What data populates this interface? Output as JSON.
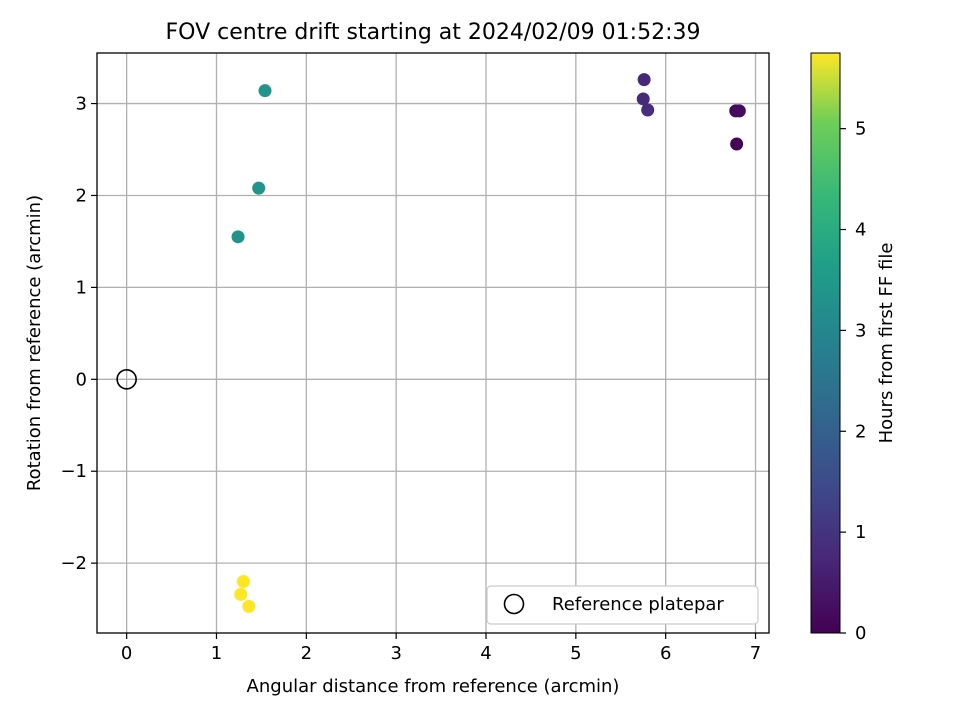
{
  "chart_data": {
    "type": "scatter",
    "title": "FOV centre drift starting at 2024/02/09 01:52:39",
    "xlabel": "Angular distance from reference (arcmin)",
    "ylabel": "Rotation from reference (arcmin)",
    "xlim": [
      -0.33,
      7.15
    ],
    "ylim": [
      -2.76,
      3.55
    ],
    "xticks": [
      0,
      1,
      2,
      3,
      4,
      5,
      6,
      7
    ],
    "yticks": [
      -2,
      -1,
      0,
      1,
      2,
      3
    ],
    "grid": true,
    "colorbar": {
      "label": "Hours from first FF file",
      "colormap": "viridis",
      "range": [
        0,
        5.75
      ],
      "ticks": [
        0,
        1,
        2,
        3,
        4,
        5
      ]
    },
    "points": [
      {
        "x": 6.79,
        "y": 2.56,
        "hours": 0.05
      },
      {
        "x": 6.78,
        "y": 2.92,
        "hours": 0.15
      },
      {
        "x": 6.82,
        "y": 2.92,
        "hours": 0.2
      },
      {
        "x": 5.76,
        "y": 3.26,
        "hours": 0.75
      },
      {
        "x": 5.75,
        "y": 3.05,
        "hours": 0.8
      },
      {
        "x": 5.8,
        "y": 2.93,
        "hours": 0.85
      },
      {
        "x": 1.24,
        "y": 1.55,
        "hours": 3.3
      },
      {
        "x": 1.47,
        "y": 2.08,
        "hours": 3.35
      },
      {
        "x": 1.54,
        "y": 3.14,
        "hours": 3.35
      },
      {
        "x": 1.3,
        "y": -2.2,
        "hours": 5.75
      },
      {
        "x": 1.27,
        "y": -2.34,
        "hours": 5.75
      },
      {
        "x": 1.36,
        "y": -2.47,
        "hours": 5.75
      }
    ],
    "reference": {
      "x": 0,
      "y": 0
    },
    "legend": {
      "placement": "lower-right",
      "label": "Reference platepar"
    },
    "colors": {
      "grid": "#b0b0b0",
      "axes": "#000000"
    }
  }
}
